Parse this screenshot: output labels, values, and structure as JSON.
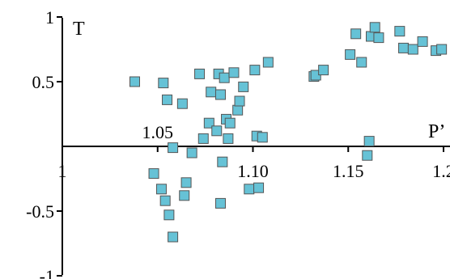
{
  "chart_data": {
    "type": "scatter",
    "xlabel": "P’",
    "ylabel": "T",
    "xlim": [
      1.0,
      1.2
    ],
    "ylim": [
      -1,
      1
    ],
    "x_ticks": [
      1.0,
      1.05,
      1.1,
      1.15,
      1.2
    ],
    "x_tick_labels": [
      "1",
      "1.05",
      "1.10",
      "1.15",
      "1.2"
    ],
    "y_ticks": [
      1,
      0.5,
      -0.5,
      -1
    ],
    "y_tick_labels": [
      "1",
      "0.5",
      "-0.5",
      "-1"
    ],
    "marker_color": "#66c2d6",
    "marker_edge": "#555555",
    "points": [
      {
        "x": 1.038,
        "y": 0.5
      },
      {
        "x": 1.048,
        "y": -0.21
      },
      {
        "x": 1.052,
        "y": -0.33
      },
      {
        "x": 1.053,
        "y": 0.49
      },
      {
        "x": 1.054,
        "y": -0.42
      },
      {
        "x": 1.055,
        "y": 0.36
      },
      {
        "x": 1.056,
        "y": -0.53
      },
      {
        "x": 1.058,
        "y": -0.7
      },
      {
        "x": 1.058,
        "y": -0.01
      },
      {
        "x": 1.063,
        "y": 0.33
      },
      {
        "x": 1.064,
        "y": -0.38
      },
      {
        "x": 1.065,
        "y": -0.28
      },
      {
        "x": 1.068,
        "y": -0.05
      },
      {
        "x": 1.072,
        "y": 0.56
      },
      {
        "x": 1.074,
        "y": 0.06
      },
      {
        "x": 1.077,
        "y": 0.18
      },
      {
        "x": 1.078,
        "y": 0.42
      },
      {
        "x": 1.081,
        "y": 0.12
      },
      {
        "x": 1.082,
        "y": 0.56
      },
      {
        "x": 1.083,
        "y": -0.44
      },
      {
        "x": 1.083,
        "y": 0.4
      },
      {
        "x": 1.084,
        "y": -0.12
      },
      {
        "x": 1.085,
        "y": 0.53
      },
      {
        "x": 1.086,
        "y": 0.21
      },
      {
        "x": 1.087,
        "y": 0.06
      },
      {
        "x": 1.088,
        "y": 0.18
      },
      {
        "x": 1.09,
        "y": 0.57
      },
      {
        "x": 1.092,
        "y": 0.28
      },
      {
        "x": 1.093,
        "y": 0.35
      },
      {
        "x": 1.095,
        "y": 0.46
      },
      {
        "x": 1.098,
        "y": -0.33
      },
      {
        "x": 1.101,
        "y": 0.59
      },
      {
        "x": 1.102,
        "y": 0.08
      },
      {
        "x": 1.103,
        "y": -0.32
      },
      {
        "x": 1.105,
        "y": 0.07
      },
      {
        "x": 1.108,
        "y": 0.65
      },
      {
        "x": 1.132,
        "y": 0.54
      },
      {
        "x": 1.133,
        "y": 0.55
      },
      {
        "x": 1.137,
        "y": 0.59
      },
      {
        "x": 1.151,
        "y": 0.71
      },
      {
        "x": 1.154,
        "y": 0.87
      },
      {
        "x": 1.157,
        "y": 0.65
      },
      {
        "x": 1.16,
        "y": -0.07
      },
      {
        "x": 1.161,
        "y": 0.04
      },
      {
        "x": 1.162,
        "y": 0.85
      },
      {
        "x": 1.164,
        "y": 0.92
      },
      {
        "x": 1.166,
        "y": 0.84
      },
      {
        "x": 1.177,
        "y": 0.89
      },
      {
        "x": 1.179,
        "y": 0.76
      },
      {
        "x": 1.184,
        "y": 0.75
      },
      {
        "x": 1.189,
        "y": 0.81
      },
      {
        "x": 1.196,
        "y": 0.74
      },
      {
        "x": 1.199,
        "y": 0.75
      }
    ]
  }
}
